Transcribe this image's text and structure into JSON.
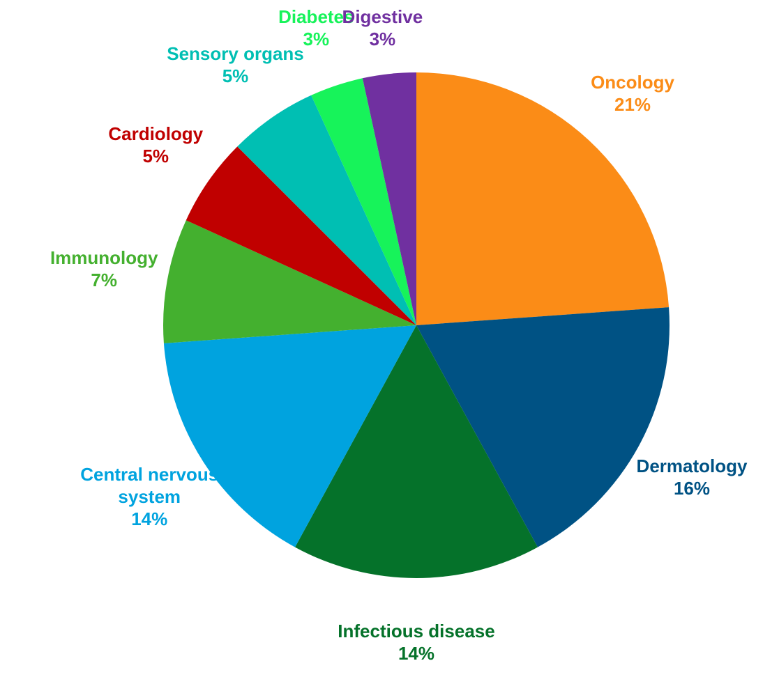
{
  "chart_data": {
    "type": "pie",
    "categories": [
      "Oncology",
      "Dermatology",
      "Infectious disease",
      "Central nervous system",
      "Immunology",
      "Cardiology",
      "Sensory organs",
      "Diabetes",
      "Digestive"
    ],
    "values": [
      21,
      16,
      14,
      14,
      7,
      5,
      5,
      3,
      3
    ],
    "value_labels": [
      "21%",
      "16%",
      "14%",
      "14%",
      "7%",
      "5%",
      "5%",
      "3%",
      "3%"
    ],
    "colors": [
      "#fb8c17",
      "#005284",
      "#05722a",
      "#00a3df",
      "#44b02f",
      "#c00000",
      "#00bfb3",
      "#17f35a",
      "#7030a0"
    ]
  }
}
